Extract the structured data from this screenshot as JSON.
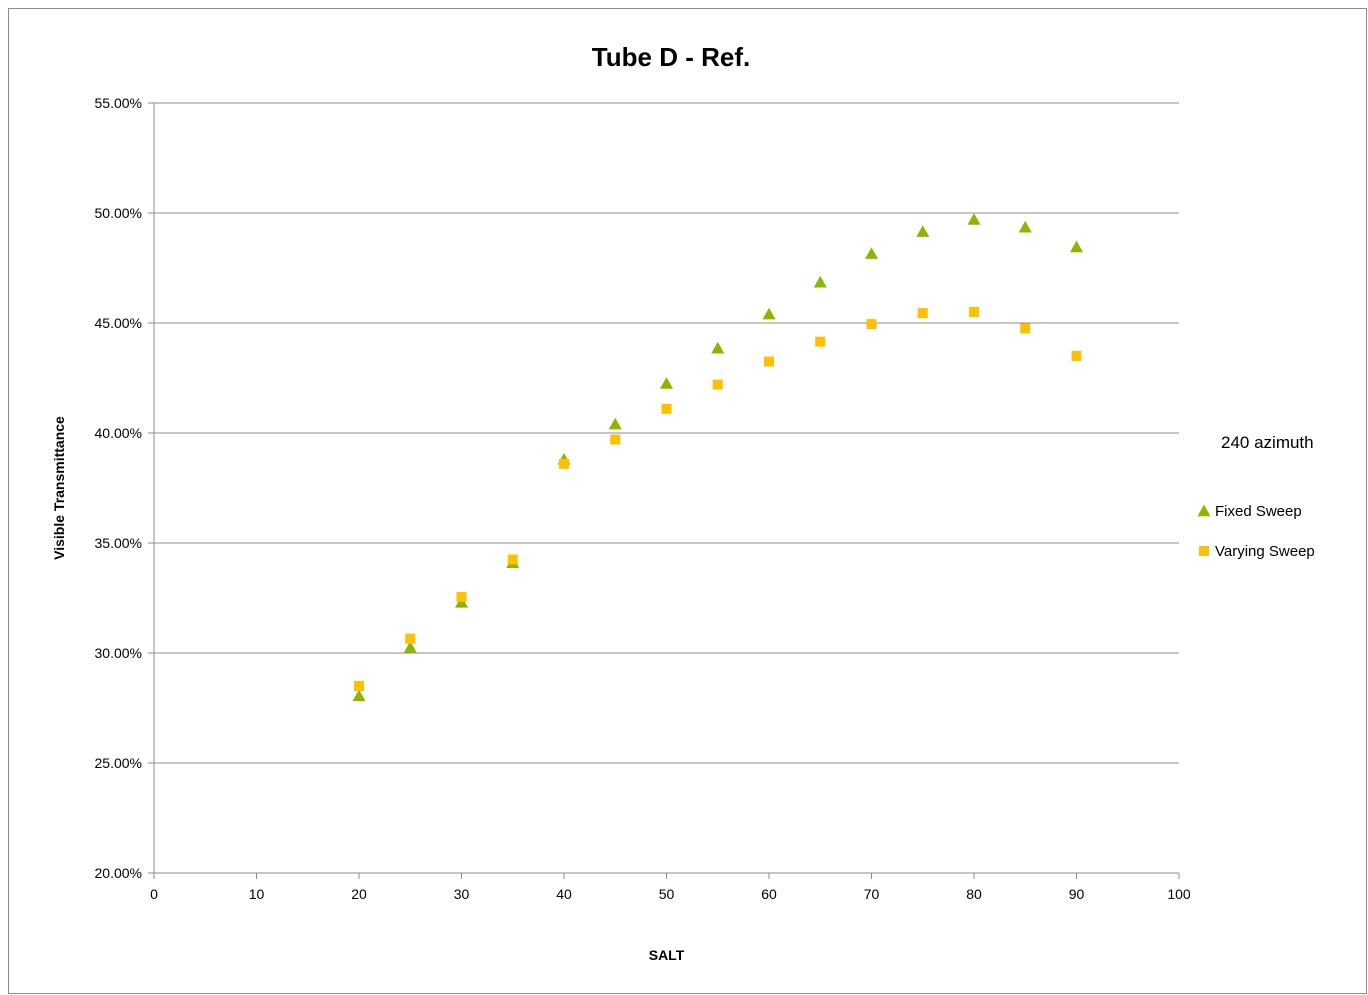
{
  "chart_data": {
    "type": "scatter",
    "title": "Tube D - Ref.",
    "xlabel": "SALT",
    "ylabel": "Visible Transmittance",
    "xlim": [
      0,
      100
    ],
    "ylim": [
      0.2,
      0.55
    ],
    "x_ticks": [
      "0",
      "10",
      "20",
      "30",
      "40",
      "50",
      "60",
      "70",
      "80",
      "90",
      "100"
    ],
    "y_ticks": [
      "20.00%",
      "25.00%",
      "30.00%",
      "35.00%",
      "40.00%",
      "45.00%",
      "50.00%",
      "55.00%"
    ],
    "grid": "horizontal",
    "legend_position": "right",
    "legend_title": "240 azimuth",
    "x": [
      20,
      25,
      30,
      35,
      40,
      45,
      50,
      55,
      60,
      65,
      70,
      75,
      80,
      85,
      90
    ],
    "series": [
      {
        "name": "Fixed Sweep",
        "marker": "triangle",
        "color": "#8DB600",
        "values": [
          0.2805,
          0.3025,
          0.323,
          0.341,
          0.388,
          0.404,
          0.4225,
          0.4385,
          0.454,
          0.4685,
          0.4815,
          0.4915,
          0.497,
          0.4935,
          0.4845
        ]
      },
      {
        "name": "Varying Sweep",
        "marker": "square",
        "color": "#FFC000",
        "values": [
          0.285,
          0.3065,
          0.3255,
          0.3425,
          0.386,
          0.397,
          0.411,
          0.422,
          0.4325,
          0.4415,
          0.4495,
          0.4545,
          0.455,
          0.4475,
          0.435
        ]
      }
    ]
  }
}
